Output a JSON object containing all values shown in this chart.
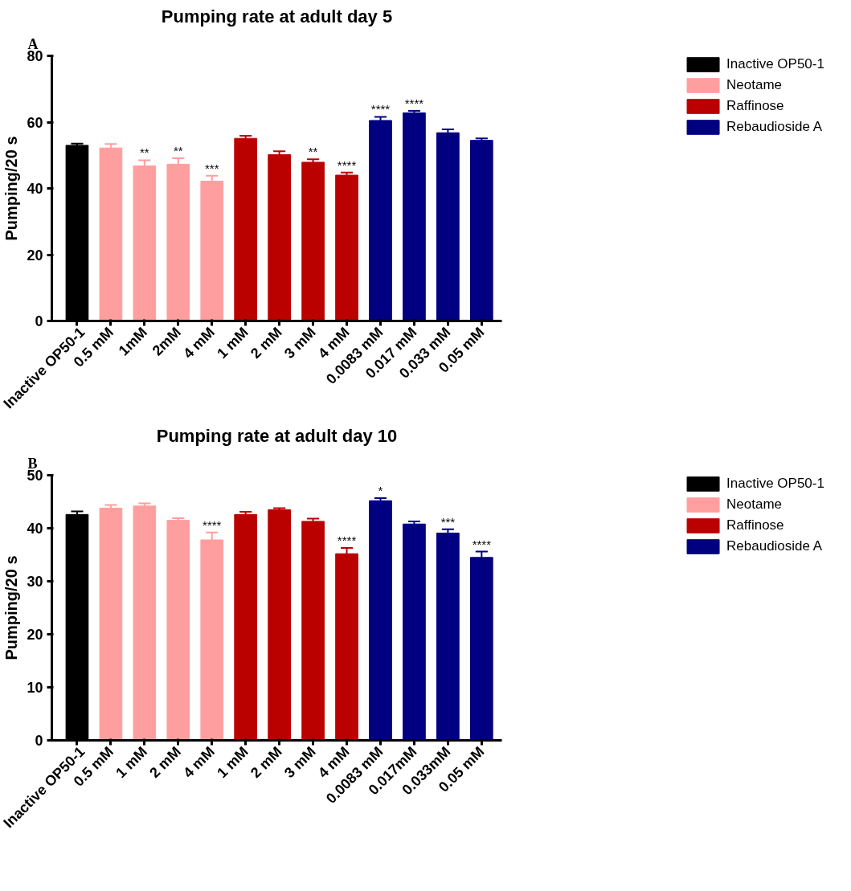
{
  "chart_data": [
    {
      "type": "bar",
      "title": "Pumping rate at adult day 5",
      "ylabel": "Pumping/20 s",
      "annotations": [
        "A"
      ],
      "categories": [
        "Inactive OP50-1",
        "0.5 mM",
        "1mM",
        "2mM",
        "4 mM",
        "1 mM",
        "2 mM",
        "3 mM",
        "4 mM",
        "0.0083 mM",
        "0.017 mM",
        "0.033 mM",
        "0.05 mM"
      ],
      "ylim": [
        0,
        80
      ],
      "yticks": [
        0,
        20,
        40,
        60,
        80
      ],
      "legend": "top right",
      "series": [
        {
          "name": "Inactive OP50-1",
          "color": "#000000",
          "values": [
            53,
            null,
            null,
            null,
            null,
            null,
            null,
            null,
            null,
            null,
            null,
            null,
            null
          ],
          "errors": [
            0.5,
            null,
            null,
            null,
            null,
            null,
            null,
            null,
            null,
            null,
            null,
            null,
            null
          ]
        },
        {
          "name": "Neotame",
          "color": "#ff9e9e",
          "values": [
            null,
            52.2,
            46.8,
            47.3,
            42.2,
            null,
            null,
            null,
            null,
            null,
            null,
            null,
            null
          ],
          "errors": [
            null,
            1.2,
            1.7,
            1.8,
            1.6,
            null,
            null,
            null,
            null,
            null,
            null,
            null,
            null
          ],
          "value_labels": [
            null,
            null,
            "**",
            "**",
            "***",
            null,
            null,
            null,
            null,
            null,
            null,
            null,
            null
          ]
        },
        {
          "name": "Raffinose",
          "color": "#bb0000",
          "values": [
            null,
            null,
            null,
            null,
            null,
            55.1,
            50.2,
            47.9,
            44,
            null,
            null,
            null,
            null
          ],
          "errors": [
            null,
            null,
            null,
            null,
            null,
            0.8,
            1,
            0.9,
            0.8,
            null,
            null,
            null,
            null
          ],
          "value_labels": [
            null,
            null,
            null,
            null,
            null,
            null,
            null,
            "**",
            "****",
            null,
            null,
            null,
            null
          ]
        },
        {
          "name": "Rebaudioside A",
          "color": "#000080",
          "values": [
            null,
            null,
            null,
            null,
            null,
            null,
            null,
            null,
            null,
            60.5,
            62.8,
            56.8,
            54.5
          ],
          "errors": [
            null,
            null,
            null,
            null,
            null,
            null,
            null,
            null,
            null,
            1.1,
            0.6,
            1,
            0.6
          ],
          "value_labels": [
            null,
            null,
            null,
            null,
            null,
            null,
            null,
            null,
            null,
            "****",
            "****",
            null,
            null
          ]
        }
      ]
    },
    {
      "type": "bar",
      "title": "Pumping rate at adult day 10",
      "ylabel": "Pumping/20 s",
      "annotations": [
        "B"
      ],
      "categories": [
        "Inactive OP50-1",
        "0.5 mM",
        "1 mM",
        "2 mM",
        "4 mM",
        "1 mM",
        "2 mM",
        "3 mM",
        "4 mM",
        "0.0083 mM",
        "0.017mM",
        "0.033mM",
        "0.05 mM"
      ],
      "ylim": [
        0,
        50
      ],
      "yticks": [
        0,
        10,
        20,
        30,
        40,
        50
      ],
      "legend": "top right",
      "series": [
        {
          "name": "Inactive OP50-1",
          "color": "#000000",
          "values": [
            42.6,
            null,
            null,
            null,
            null,
            null,
            null,
            null,
            null,
            null,
            null,
            null,
            null
          ],
          "errors": [
            0.6,
            null,
            null,
            null,
            null,
            null,
            null,
            null,
            null,
            null,
            null,
            null,
            null
          ]
        },
        {
          "name": "Neotame",
          "color": "#ff9e9e",
          "values": [
            null,
            43.8,
            44.2,
            41.5,
            37.8,
            null,
            null,
            null,
            null,
            null,
            null,
            null,
            null
          ],
          "errors": [
            null,
            0.6,
            0.5,
            0.4,
            1.4,
            null,
            null,
            null,
            null,
            null,
            null,
            null,
            null
          ],
          "value_labels": [
            null,
            null,
            null,
            null,
            "****",
            null,
            null,
            null,
            null,
            null,
            null,
            null,
            null
          ]
        },
        {
          "name": "Raffinose",
          "color": "#bb0000",
          "values": [
            null,
            null,
            null,
            null,
            null,
            42.6,
            43.5,
            41.3,
            35.2,
            null,
            null,
            null,
            null
          ],
          "errors": [
            null,
            null,
            null,
            null,
            null,
            0.5,
            0.3,
            0.5,
            1.1,
            null,
            null,
            null,
            null
          ],
          "value_labels": [
            null,
            null,
            null,
            null,
            null,
            null,
            null,
            null,
            "****",
            null,
            null,
            null,
            null
          ]
        },
        {
          "name": "Rebaudioside A",
          "color": "#000080",
          "values": [
            null,
            null,
            null,
            null,
            null,
            null,
            null,
            null,
            null,
            45.2,
            40.8,
            39.1,
            34.5
          ],
          "errors": [
            null,
            null,
            null,
            null,
            null,
            null,
            null,
            null,
            null,
            0.5,
            0.5,
            0.7,
            1.1
          ],
          "value_labels": [
            null,
            null,
            null,
            null,
            null,
            null,
            null,
            null,
            null,
            "*",
            null,
            "***",
            "****"
          ]
        }
      ]
    }
  ]
}
